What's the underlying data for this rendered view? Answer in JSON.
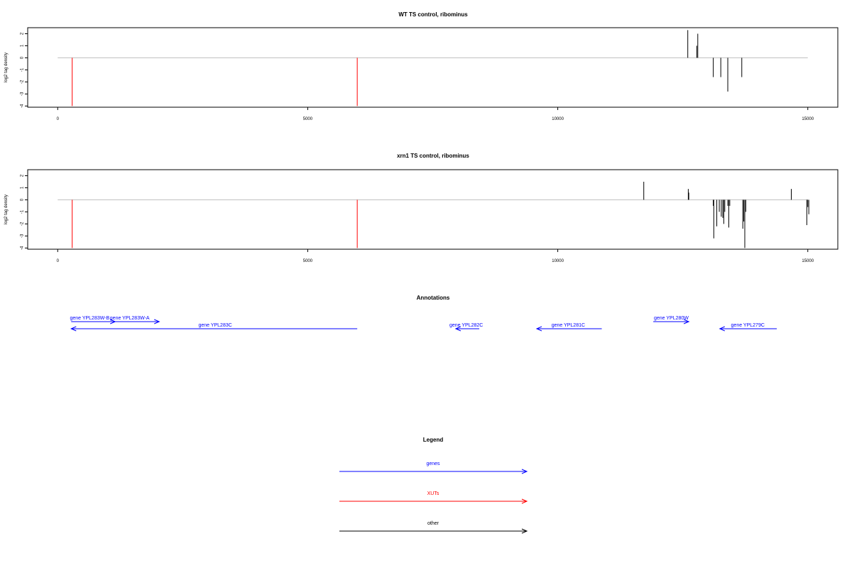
{
  "colors": {
    "gene": "#0000ff",
    "xut": "#ff0000",
    "other": "#000000",
    "baseline": "#bebebe",
    "axis": "#000000",
    "background": "#ffffff"
  },
  "chart_data": [
    {
      "type": "bar",
      "title": "WT TS control, ribominus",
      "xlabel": "",
      "ylabel": "log2 tag density",
      "xlim": [
        -600,
        15600
      ],
      "ylim": [
        -4.1,
        2.5
      ],
      "xticks": [
        0,
        5000,
        10000,
        15000
      ],
      "yticks": [
        -4,
        -3,
        -2,
        -1,
        0,
        1,
        2
      ],
      "baseline": [
        0,
        15000
      ],
      "xut_marks": [
        {
          "x": 290,
          "y": -4
        },
        {
          "x": 5990,
          "y": -4
        }
      ],
      "signal": [
        {
          "x": 12600,
          "y": 2.3
        },
        {
          "x": 12780,
          "y": 1.0
        },
        {
          "x": 12800,
          "y": 2.0
        },
        {
          "x": 13110,
          "y": -1.6
        },
        {
          "x": 13260,
          "y": -1.6
        },
        {
          "x": 13400,
          "y": -2.8
        },
        {
          "x": 13680,
          "y": -1.6
        }
      ]
    },
    {
      "type": "bar",
      "title": "xrn1 TS control, ribominus",
      "xlabel": "",
      "ylabel": "log2 tag density",
      "xlim": [
        -600,
        15600
      ],
      "ylim": [
        -4.1,
        2.5
      ],
      "xticks": [
        0,
        5000,
        10000,
        15000
      ],
      "yticks": [
        -4,
        -3,
        -2,
        -1,
        0,
        1,
        2
      ],
      "baseline": [
        0,
        15000
      ],
      "xut_marks": [
        {
          "x": 290,
          "y": -4
        },
        {
          "x": 5990,
          "y": -4
        }
      ],
      "signal": [
        {
          "x": 11720,
          "y": 1.5
        },
        {
          "x": 12610,
          "y": 0.9
        },
        {
          "x": 12620,
          "y": 0.6
        },
        {
          "x": 13110,
          "y": -0.5
        },
        {
          "x": 13120,
          "y": -3.2
        },
        {
          "x": 13180,
          "y": -2.2
        },
        {
          "x": 13230,
          "y": -1.0
        },
        {
          "x": 13270,
          "y": -1.4
        },
        {
          "x": 13300,
          "y": -1.5
        },
        {
          "x": 13320,
          "y": -2.0
        },
        {
          "x": 13340,
          "y": -1.0
        },
        {
          "x": 13400,
          "y": -0.5
        },
        {
          "x": 13420,
          "y": -2.3
        },
        {
          "x": 13440,
          "y": -0.5
        },
        {
          "x": 13700,
          "y": -2.4
        },
        {
          "x": 13720,
          "y": -1.8
        },
        {
          "x": 13740,
          "y": -4.0
        },
        {
          "x": 13760,
          "y": -1.0
        },
        {
          "x": 14670,
          "y": 0.9
        },
        {
          "x": 14980,
          "y": -2.1
        },
        {
          "x": 15000,
          "y": -0.6
        },
        {
          "x": 15020,
          "y": -1.2
        }
      ]
    }
  ],
  "annotations": {
    "title": "Annotations",
    "genes": [
      {
        "label": "gene YPL283W-B",
        "start": 270,
        "end": 1150,
        "strand": "+",
        "row": 0,
        "anchor": 640
      },
      {
        "label": "gene YPL283W-A",
        "start": 1150,
        "end": 2030,
        "strand": "+",
        "row": 0,
        "anchor": 1440
      },
      {
        "label": "gene YPL283C",
        "start": 270,
        "end": 5990,
        "strand": "-",
        "row": 1,
        "anchor": 3150
      },
      {
        "label": "gene YPL282C",
        "start": 7960,
        "end": 8430,
        "strand": "-",
        "row": 1,
        "anchor": 8170
      },
      {
        "label": "gene YPL281C",
        "start": 9580,
        "end": 10880,
        "strand": "-",
        "row": 1,
        "anchor": 10210
      },
      {
        "label": "gene YPL280W",
        "start": 11910,
        "end": 12620,
        "strand": "+",
        "row": 0,
        "anchor": 12270
      },
      {
        "label": "gene YPL279C",
        "start": 13240,
        "end": 14380,
        "strand": "-",
        "row": 1,
        "anchor": 13800
      }
    ]
  },
  "legend": {
    "title": "Legend",
    "items": [
      {
        "label": "genes",
        "color": "#0000ff"
      },
      {
        "label": "XUTs",
        "color": "#ff0000"
      },
      {
        "label": "other",
        "color": "#000000"
      }
    ]
  }
}
